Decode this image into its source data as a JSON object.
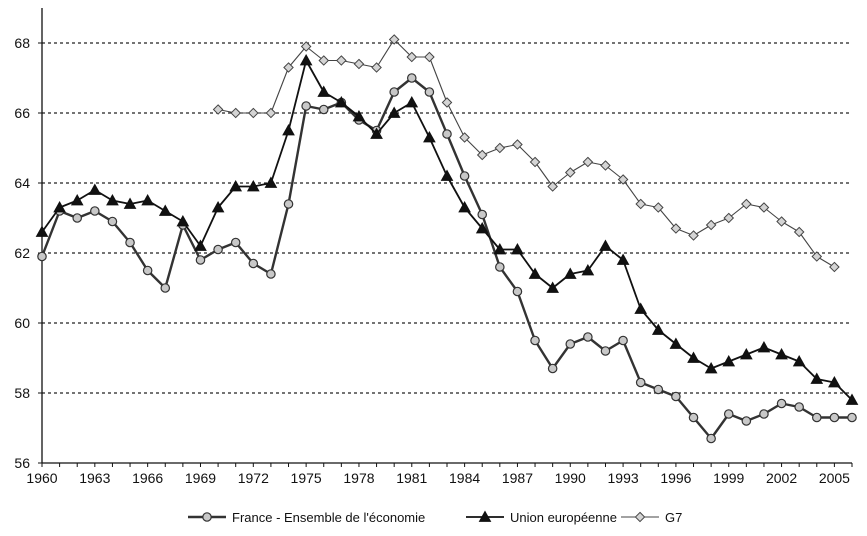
{
  "chart_data": {
    "type": "line",
    "title": "",
    "xlabel": "",
    "ylabel": "",
    "xlim": [
      1960,
      2006
    ],
    "ylim": [
      56,
      69
    ],
    "x_ticks": [
      1960,
      1963,
      1966,
      1969,
      1972,
      1975,
      1978,
      1981,
      1984,
      1987,
      1990,
      1993,
      1996,
      1999,
      2002,
      2005
    ],
    "x_tick_labels": [
      "1960",
      "1963",
      "1966",
      "1969",
      "1972",
      "1975",
      "1978",
      "1981",
      "1984",
      "1987",
      "1990",
      "1993",
      "1996",
      "1999",
      "2002",
      "2005"
    ],
    "y_ticks": [
      56,
      58,
      60,
      62,
      64,
      66,
      68
    ],
    "y_tick_labels": [
      "56",
      "58",
      "60",
      "62",
      "64",
      "66",
      "68"
    ],
    "grid": "horizontal dotted",
    "legend_position": "bottom",
    "series": [
      {
        "name": "France - Ensemble de l'économie",
        "marker": "circle",
        "color": "#333333",
        "points": [
          [
            1960,
            61.9
          ],
          [
            1961,
            63.2
          ],
          [
            1962,
            63.0
          ],
          [
            1963,
            63.2
          ],
          [
            1964,
            62.9
          ],
          [
            1965,
            62.3
          ],
          [
            1966,
            61.5
          ],
          [
            1967,
            61.0
          ],
          [
            1968,
            62.8
          ],
          [
            1969,
            61.8
          ],
          [
            1970,
            62.1
          ],
          [
            1971,
            62.3
          ],
          [
            1972,
            61.7
          ],
          [
            1973,
            61.4
          ],
          [
            1974,
            63.4
          ],
          [
            1975,
            66.2
          ],
          [
            1976,
            66.1
          ],
          [
            1977,
            66.3
          ],
          [
            1978,
            65.8
          ],
          [
            1979,
            65.5
          ],
          [
            1980,
            66.6
          ],
          [
            1981,
            67.0
          ],
          [
            1982,
            66.6
          ],
          [
            1983,
            65.4
          ],
          [
            1984,
            64.2
          ],
          [
            1985,
            63.1
          ],
          [
            1986,
            61.6
          ],
          [
            1987,
            60.9
          ],
          [
            1988,
            59.5
          ],
          [
            1989,
            58.7
          ],
          [
            1990,
            59.4
          ],
          [
            1991,
            59.6
          ],
          [
            1992,
            59.2
          ],
          [
            1993,
            59.5
          ],
          [
            1994,
            58.3
          ],
          [
            1995,
            58.1
          ],
          [
            1996,
            57.9
          ],
          [
            1997,
            57.3
          ],
          [
            1998,
            56.7
          ],
          [
            1999,
            57.4
          ],
          [
            2000,
            57.2
          ],
          [
            2001,
            57.4
          ],
          [
            2002,
            57.7
          ],
          [
            2003,
            57.6
          ],
          [
            2004,
            57.3
          ],
          [
            2005,
            57.3
          ],
          [
            2006,
            57.3
          ]
        ]
      },
      {
        "name": "Union européenne",
        "marker": "triangle",
        "color": "#111111",
        "points": [
          [
            1960,
            62.6
          ],
          [
            1961,
            63.3
          ],
          [
            1962,
            63.5
          ],
          [
            1963,
            63.8
          ],
          [
            1964,
            63.5
          ],
          [
            1965,
            63.4
          ],
          [
            1966,
            63.5
          ],
          [
            1967,
            63.2
          ],
          [
            1968,
            62.9
          ],
          [
            1969,
            62.2
          ],
          [
            1970,
            63.3
          ],
          [
            1971,
            63.9
          ],
          [
            1972,
            63.9
          ],
          [
            1973,
            64.0
          ],
          [
            1974,
            65.5
          ],
          [
            1975,
            67.5
          ],
          [
            1976,
            66.6
          ],
          [
            1977,
            66.3
          ],
          [
            1978,
            65.9
          ],
          [
            1979,
            65.4
          ],
          [
            1980,
            66.0
          ],
          [
            1981,
            66.3
          ],
          [
            1982,
            65.3
          ],
          [
            1983,
            64.2
          ],
          [
            1984,
            63.3
          ],
          [
            1985,
            62.7
          ],
          [
            1986,
            62.1
          ],
          [
            1987,
            62.1
          ],
          [
            1988,
            61.4
          ],
          [
            1989,
            61.0
          ],
          [
            1990,
            61.4
          ],
          [
            1991,
            61.5
          ],
          [
            1992,
            62.2
          ],
          [
            1993,
            61.8
          ],
          [
            1994,
            60.4
          ],
          [
            1995,
            59.8
          ],
          [
            1996,
            59.4
          ],
          [
            1997,
            59.0
          ],
          [
            1998,
            58.7
          ],
          [
            1999,
            58.9
          ],
          [
            2000,
            59.1
          ],
          [
            2001,
            59.3
          ],
          [
            2002,
            59.1
          ],
          [
            2003,
            58.9
          ],
          [
            2004,
            58.4
          ],
          [
            2005,
            58.3
          ],
          [
            2006,
            57.8
          ]
        ]
      },
      {
        "name": "G7",
        "marker": "diamond",
        "color": "#444444",
        "points": [
          [
            1970,
            66.1
          ],
          [
            1971,
            66.0
          ],
          [
            1972,
            66.0
          ],
          [
            1973,
            66.0
          ],
          [
            1974,
            67.3
          ],
          [
            1975,
            67.9
          ],
          [
            1976,
            67.5
          ],
          [
            1977,
            67.5
          ],
          [
            1978,
            67.4
          ],
          [
            1979,
            67.3
          ],
          [
            1980,
            68.1
          ],
          [
            1981,
            67.6
          ],
          [
            1982,
            67.6
          ],
          [
            1983,
            66.3
          ],
          [
            1984,
            65.3
          ],
          [
            1985,
            64.8
          ],
          [
            1986,
            65.0
          ],
          [
            1987,
            65.1
          ],
          [
            1988,
            64.6
          ],
          [
            1989,
            63.9
          ],
          [
            1990,
            64.3
          ],
          [
            1991,
            64.6
          ],
          [
            1992,
            64.5
          ],
          [
            1993,
            64.1
          ],
          [
            1994,
            63.4
          ],
          [
            1995,
            63.3
          ],
          [
            1996,
            62.7
          ],
          [
            1997,
            62.5
          ],
          [
            1998,
            62.8
          ],
          [
            1999,
            63.0
          ],
          [
            2000,
            63.4
          ],
          [
            2001,
            63.3
          ],
          [
            2002,
            62.9
          ],
          [
            2003,
            62.6
          ],
          [
            2004,
            61.9
          ],
          [
            2005,
            61.6
          ]
        ]
      }
    ]
  }
}
